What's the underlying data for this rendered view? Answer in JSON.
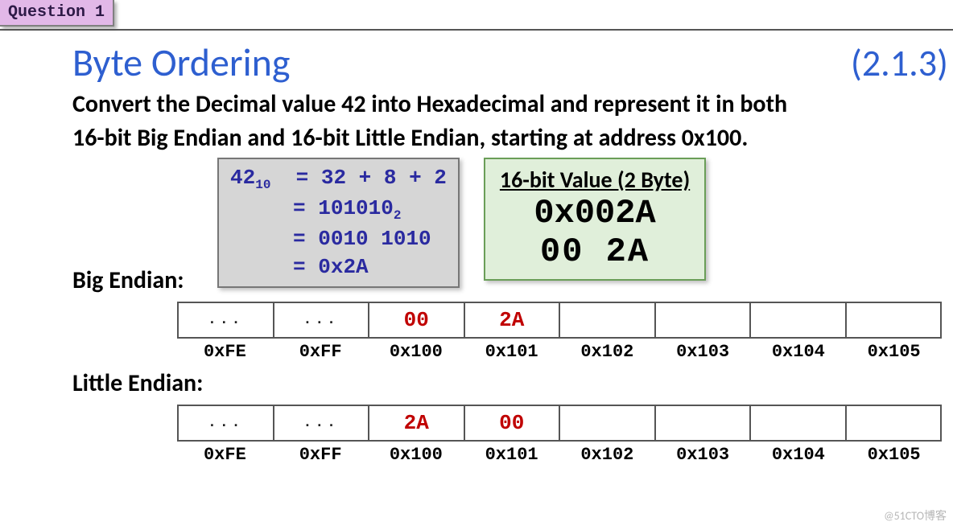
{
  "tab_label": "Question 1",
  "title": "Byte Ordering",
  "section_ref": "(2.1.3)",
  "prompt_line1": "Convert the Decimal value 42 into Hexadecimal and represent it in both",
  "prompt_line2": "16-bit Big Endian and 16-bit Little Endian, starting at address 0x100.",
  "calc": {
    "lhs": "42",
    "lhs_sub": "10",
    "eq1_lhs": "=",
    "eq1_rhs": "32 + 8 + 2",
    "eq2_lhs": "=",
    "eq2_rhs": "101010",
    "eq2_sub": "2",
    "eq3_lhs": "=",
    "eq3_rhs": "0010 1010",
    "eq4_lhs": "=",
    "eq4_rhs": "0x2A"
  },
  "value_box": {
    "heading": "16-bit Value (2 Byte)",
    "hex": "0x002A",
    "bytes": "00  2A"
  },
  "big_label": "Big Endian:",
  "little_label": "Little Endian:",
  "addresses": [
    "0xFE",
    "0xFF",
    "0x100",
    "0x101",
    "0x102",
    "0x103",
    "0x104",
    "0x105"
  ],
  "big_cells": [
    "...",
    "...",
    "00",
    "2A",
    "",
    "",
    "",
    ""
  ],
  "little_cells": [
    "...",
    "...",
    "2A",
    "00",
    "",
    "",
    "",
    ""
  ],
  "red_indices": [
    2,
    3
  ],
  "dot_indices": [
    0,
    1
  ],
  "watermark": "@51CTO博客",
  "colors": {
    "tab_bg": "#e2b8e8",
    "title": "#2e5fd0",
    "calc_bg": "#d6d6d6",
    "calc_text": "#2a2aa0",
    "value_bg": "#e0efda",
    "value_border": "#6a9e58",
    "cell_red": "#c00000",
    "border": "#555555"
  }
}
